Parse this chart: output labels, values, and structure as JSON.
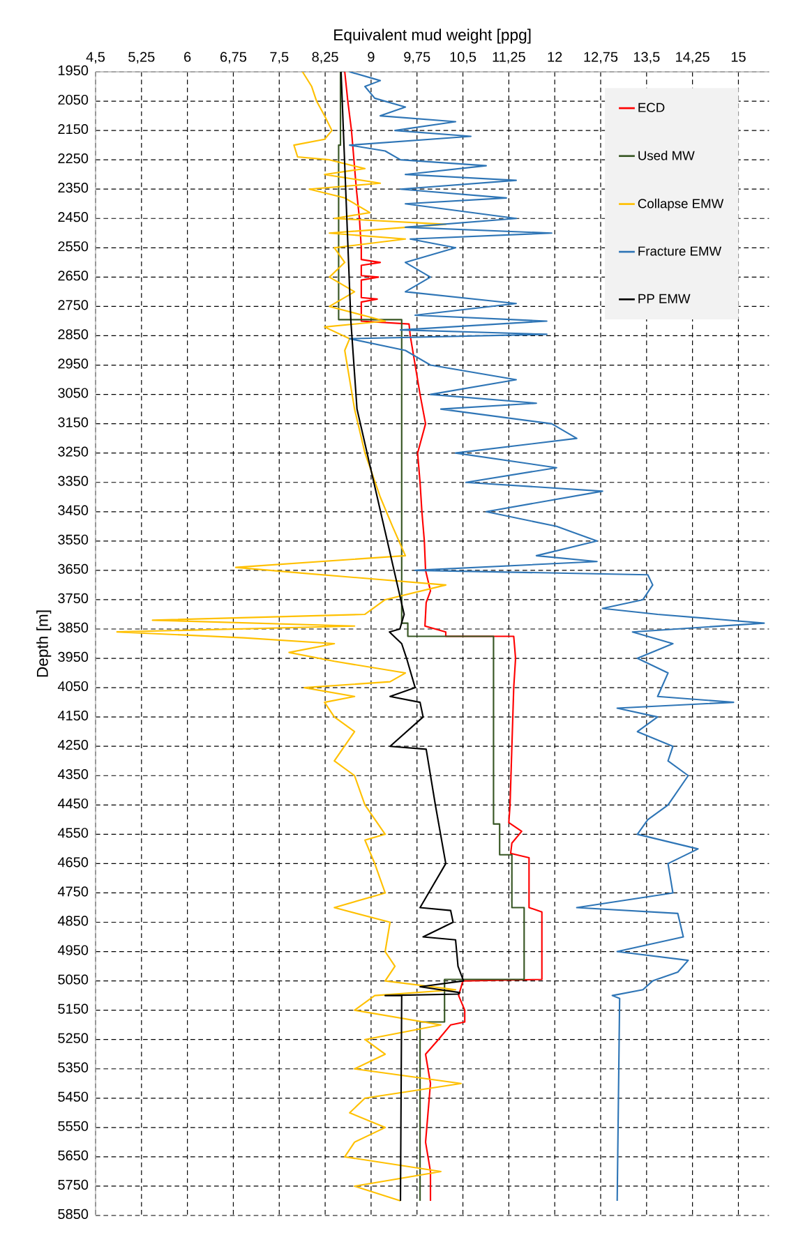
{
  "chart_data": {
    "type": "line",
    "xlabel": "Equivalent mud weight [ppg]",
    "ylabel": "Depth [m]",
    "xlim": [
      4.5,
      15.5
    ],
    "ylim": [
      5850,
      1950
    ],
    "xticks": [
      {
        "value": 4.5,
        "label": "4,5"
      },
      {
        "value": 5.25,
        "label": "5,25"
      },
      6,
      {
        "value": 6.75,
        "label": "6,75"
      },
      {
        "value": 7.5,
        "label": "7,5"
      },
      {
        "value": 8.25,
        "label": "8,25"
      },
      9,
      {
        "value": 9.75,
        "label": "9,75"
      },
      {
        "value": 10.5,
        "label": "10,5"
      },
      {
        "value": 11.25,
        "label": "11,25"
      },
      12,
      {
        "value": 12.75,
        "label": "12,75"
      },
      {
        "value": 13.5,
        "label": "13,5"
      },
      {
        "value": 14.25,
        "label": "14,25"
      },
      15
    ],
    "yticks": [
      1950,
      2050,
      2150,
      2250,
      2350,
      2450,
      2550,
      2650,
      2750,
      2850,
      2950,
      3050,
      3150,
      3250,
      3350,
      3450,
      3550,
      3650,
      3750,
      3850,
      3950,
      4050,
      4150,
      4250,
      4350,
      4450,
      4550,
      4650,
      4750,
      4850,
      4950,
      5050,
      5150,
      5250,
      5350,
      5450,
      5550,
      5650,
      5750,
      5850
    ],
    "grid": true,
    "legend": "top right",
    "series": [
      {
        "name": "ECD",
        "color": "#ff0000",
        "x": [
          8.57,
          8.62,
          8.68,
          8.72,
          8.76,
          8.81,
          8.84,
          8.84,
          9.15,
          8.84,
          8.84,
          9.12,
          8.84,
          8.84,
          9.1,
          8.84,
          8.84,
          9.62,
          9.64,
          9.72,
          9.8,
          9.89,
          9.76,
          9.8,
          9.83,
          9.87,
          9.89,
          9.97,
          9.9,
          9.88,
          10.22,
          10.22,
          11.33,
          11.36,
          11.33,
          11.3,
          11.27,
          11.25,
          11.46,
          11.3,
          11.28,
          11.58,
          11.58,
          11.79,
          11.79,
          10.5,
          10.43,
          10.53,
          10.53,
          10.3,
          10.1,
          9.89,
          9.97,
          9.93,
          9.89,
          9.97,
          9.97
        ],
        "values": [
          1950,
          2050,
          2150,
          2250,
          2350,
          2450,
          2550,
          2590,
          2600,
          2610,
          2645,
          2650,
          2660,
          2720,
          2725,
          2735,
          2800,
          2810,
          2850,
          2950,
          3050,
          3150,
          3250,
          3350,
          3450,
          3550,
          3650,
          3720,
          3760,
          3840,
          3860,
          3875,
          3875,
          3950,
          4050,
          4250,
          4450,
          4510,
          4540,
          4580,
          4615,
          4630,
          4800,
          4815,
          5045,
          5050,
          5100,
          5150,
          5190,
          5200,
          5250,
          5300,
          5400,
          5500,
          5600,
          5700,
          5800
        ]
      },
      {
        "name": "Used MW",
        "color": "#375623",
        "x": [
          8.5,
          8.5,
          8.47,
          8.47,
          9.5,
          9.5,
          9.6,
          9.6,
          11.0,
          11.0,
          11.1,
          11.1,
          11.3,
          11.3,
          11.5,
          11.5,
          10.2,
          10.2,
          9.8,
          9.8
        ],
        "values": [
          1950,
          2200,
          2200,
          2795,
          2795,
          3830,
          3830,
          3875,
          3875,
          4515,
          4515,
          4620,
          4620,
          4800,
          4800,
          5045,
          5045,
          5190,
          5190,
          5800
        ]
      },
      {
        "name": "Collapse EMW",
        "color": "#ffc000",
        "x": [
          7.88,
          8.03,
          8.11,
          8.24,
          8.36,
          8.24,
          7.74,
          7.8,
          8.32,
          8.9,
          8.24,
          9.15,
          7.99,
          8.57,
          8.98,
          8.4,
          10.22,
          8.32,
          9.56,
          8.4,
          8.57,
          8.32,
          8.73,
          8.32,
          9.23,
          8.24,
          8.65,
          8.57,
          8.73,
          8.9,
          9.15,
          9.35,
          9.56,
          6.79,
          7.91,
          10.22,
          9.23,
          8.9,
          5.43,
          8.73,
          4.85,
          6.92,
          8.4,
          7.66,
          8.4,
          9.56,
          9.31,
          7.91,
          8.73,
          8.24,
          8.4,
          8.73,
          8.4,
          8.73,
          8.9,
          9.23,
          8.9,
          9.06,
          9.23,
          8.4,
          9.31,
          9.23,
          9.39,
          9.23,
          10.38,
          9.06,
          8.73,
          10.14,
          8.9,
          9.23,
          8.73,
          10.47,
          8.9,
          8.65,
          9.23,
          8.73,
          8.57,
          10.14,
          8.73,
          9.48
        ],
        "values": [
          1950,
          2000,
          2050,
          2100,
          2150,
          2180,
          2200,
          2240,
          2250,
          2280,
          2300,
          2330,
          2350,
          2380,
          2430,
          2450,
          2470,
          2500,
          2520,
          2550,
          2600,
          2650,
          2700,
          2750,
          2800,
          2820,
          2860,
          2900,
          3100,
          3250,
          3400,
          3500,
          3600,
          3640,
          3660,
          3700,
          3750,
          3800,
          3820,
          3840,
          3860,
          3880,
          3900,
          3930,
          3960,
          4000,
          4030,
          4050,
          4080,
          4100,
          4150,
          4200,
          4300,
          4350,
          4450,
          4550,
          4570,
          4650,
          4750,
          4800,
          4850,
          4950,
          5000,
          5050,
          5080,
          5100,
          5150,
          5200,
          5250,
          5300,
          5350,
          5400,
          5450,
          5500,
          5550,
          5600,
          5650,
          5700,
          5750,
          5800
        ]
      },
      {
        "name": "Fracture EMW",
        "color": "#2e75b6",
        "x": [
          8.65,
          9.15,
          8.9,
          9.06,
          9.56,
          9.15,
          10.38,
          9.39,
          10.63,
          8.65,
          9.23,
          9.48,
          10.88,
          9.56,
          11.37,
          9.48,
          11.21,
          9.56,
          11.37,
          9.56,
          11.95,
          9.64,
          10.38,
          9.56,
          9.97,
          9.56,
          11.37,
          9.72,
          11.87,
          9.48,
          11.87,
          8.65,
          9.56,
          9.97,
          11.37,
          9.97,
          11.7,
          10.14,
          11.95,
          12.36,
          10.38,
          12.03,
          10.55,
          12.78,
          10.88,
          12.03,
          12.69,
          11.7,
          12.69,
          9.72,
          13.52,
          13.6,
          13.44,
          12.78,
          13.68,
          15.42,
          13.27,
          13.93,
          13.35,
          13.85,
          13.68,
          14.92,
          13.02,
          13.68,
          13.35,
          13.93,
          13.85,
          14.18,
          13.85,
          13.52,
          13.35,
          14.34,
          13.85,
          13.93,
          12.36,
          14.01,
          14.1,
          13.02,
          14.18,
          14.01,
          13.6,
          13.44,
          12.94,
          13.06,
          13.02
        ],
        "values": [
          1950,
          1980,
          2000,
          2040,
          2070,
          2100,
          2120,
          2150,
          2170,
          2200,
          2220,
          2250,
          2270,
          2300,
          2320,
          2350,
          2380,
          2400,
          2450,
          2480,
          2500,
          2520,
          2550,
          2600,
          2650,
          2700,
          2740,
          2780,
          2800,
          2830,
          2845,
          2860,
          2900,
          2950,
          3000,
          3050,
          3080,
          3100,
          3150,
          3200,
          3250,
          3300,
          3350,
          3380,
          3450,
          3500,
          3550,
          3600,
          3620,
          3650,
          3665,
          3700,
          3750,
          3780,
          3800,
          3830,
          3860,
          3900,
          3950,
          4000,
          4080,
          4100,
          4120,
          4150,
          4200,
          4250,
          4300,
          4350,
          4450,
          4500,
          4550,
          4600,
          4650,
          4750,
          4800,
          4820,
          4900,
          4950,
          4980,
          5020,
          5050,
          5080,
          5100,
          5110,
          5800
        ]
      },
      {
        "name": "PP EMW",
        "color": "#000000",
        "x": [
          8.51,
          8.67,
          8.77,
          9.54,
          9.47,
          9.3,
          9.5,
          9.58,
          9.72,
          9.31,
          9.8,
          9.85,
          9.31,
          9.9,
          10.05,
          10.22,
          9.8,
          10.3,
          10.34,
          9.85,
          10.38,
          10.42,
          10.51,
          9.8,
          10.45,
          10.42,
          9.23,
          9.5,
          9.48
        ],
        "values": [
          1950,
          2800,
          3100,
          3800,
          3850,
          3860,
          3900,
          3950,
          4050,
          4080,
          4100,
          4150,
          4250,
          4260,
          4450,
          4650,
          4800,
          4810,
          4850,
          4900,
          4910,
          5000,
          5050,
          5070,
          5090,
          5095,
          5100,
          5100,
          5800
        ]
      }
    ]
  }
}
